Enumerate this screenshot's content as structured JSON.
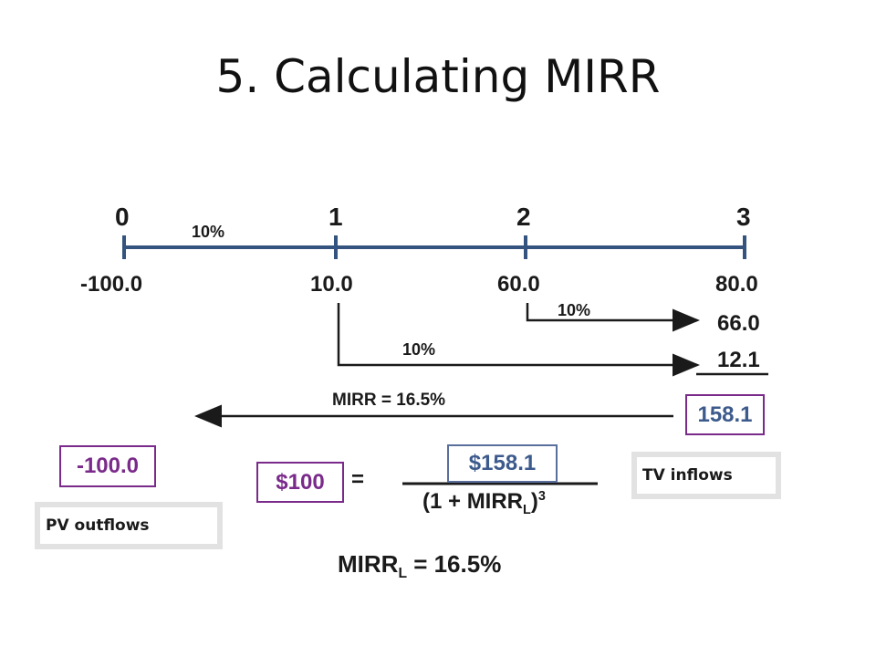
{
  "title": "5. Calculating MIRR",
  "timeline": {
    "periods": [
      "0",
      "1",
      "2",
      "3"
    ],
    "cash_flows": [
      "-100.0",
      "10.0",
      "60.0",
      "80.0"
    ],
    "rate_label": "10%"
  },
  "compounding": {
    "rate_from_2": "10%",
    "fv_from_2": "66.0",
    "rate_from_1": "10%",
    "fv_from_1": "12.1"
  },
  "mirr_arrow_label": "MIRR = 16.5%",
  "tv_total": "158.1",
  "pv_value": "-100.0",
  "equation": {
    "lhs": "$100",
    "equals": "=",
    "numerator": "$158.1",
    "denominator_prefix": "(1 + MIRR",
    "denominator_sub": "L",
    "denominator_close": ")",
    "denominator_exp": "3"
  },
  "result": {
    "prefix": "MIRR",
    "sub": "L",
    "suffix": " = 16.5%"
  },
  "labels": {
    "tv_inflows": "TV inflows",
    "pv_outflows": "PV outflows"
  },
  "colors": {
    "timeline": "#34547f",
    "purple_border": "#7a2a8a",
    "blue_border": "#5a6f9c",
    "gray_border": "#e2e2e2",
    "value_blue": "#3c5a8c"
  }
}
